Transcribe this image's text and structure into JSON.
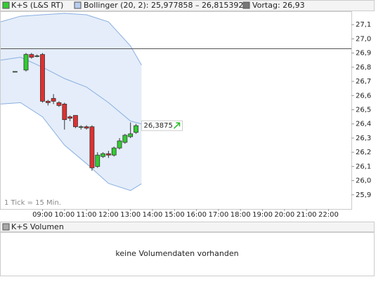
{
  "chart_data": {
    "type": "candlestick",
    "title": "K+S (L&S RT)",
    "annotation": "1 Tick = 15 Min.",
    "x": [
      7.75,
      8.25,
      8.5,
      8.75,
      9.0,
      9.25,
      9.5,
      9.75,
      10.0,
      10.25,
      10.5,
      10.75,
      11.0,
      11.25,
      11.5,
      11.75,
      12.0,
      12.25,
      12.5,
      12.75,
      13.0,
      13.25
    ],
    "open": [
      26.77,
      26.78,
      26.89,
      26.88,
      26.89,
      26.56,
      26.58,
      26.55,
      26.54,
      26.45,
      26.46,
      26.38,
      26.38,
      26.38,
      26.1,
      26.17,
      26.19,
      26.18,
      26.23,
      26.27,
      26.31,
      26.34
    ],
    "high": [
      26.77,
      26.9,
      26.9,
      26.89,
      26.9,
      26.57,
      26.61,
      26.56,
      26.55,
      26.46,
      26.46,
      26.39,
      26.39,
      26.39,
      26.2,
      26.2,
      26.21,
      26.24,
      26.3,
      26.33,
      26.41,
      26.4
    ],
    "low": [
      26.77,
      26.77,
      26.86,
      26.87,
      26.55,
      26.53,
      26.54,
      26.52,
      26.36,
      26.42,
      26.37,
      26.36,
      26.36,
      26.07,
      26.09,
      26.16,
      26.16,
      26.17,
      26.22,
      26.26,
      26.3,
      26.33
    ],
    "close": [
      26.77,
      26.89,
      26.87,
      26.88,
      26.56,
      26.55,
      26.56,
      26.53,
      26.43,
      26.44,
      26.38,
      26.38,
      26.37,
      26.09,
      26.18,
      26.19,
      26.18,
      26.23,
      26.28,
      26.32,
      26.33,
      26.3875
    ],
    "up_color": "#33cc33",
    "down_color": "#e03030",
    "last_label": "26,3875",
    "bollinger": {
      "name": "Bollinger (20, 2): 25,977858 – 26,815392",
      "color": "#8aaee0",
      "fill": "#dde8f7",
      "x": [
        7.1,
        8,
        9,
        10,
        11,
        12,
        13,
        13.5
      ],
      "upper": [
        27.12,
        27.16,
        27.17,
        27.18,
        27.17,
        27.12,
        26.95,
        26.815392
      ],
      "middle": [
        26.85,
        26.87,
        26.8,
        26.72,
        26.66,
        26.55,
        26.42,
        26.4
      ],
      "lower": [
        26.54,
        26.55,
        26.45,
        26.25,
        26.12,
        25.98,
        25.93,
        25.977858
      ]
    },
    "previous_close": {
      "name": "Vortag: 26,93",
      "value": 26.93,
      "color": "#555555"
    },
    "xlim": [
      7.1,
      23.04
    ],
    "ylim": [
      25.8,
      27.19
    ],
    "xticks": [
      {
        "value": 9,
        "label": "09:00"
      },
      {
        "value": 10,
        "label": "10:00"
      },
      {
        "value": 11,
        "label": "11:00"
      },
      {
        "value": 12,
        "label": "12:00"
      },
      {
        "value": 13,
        "label": "13:00"
      },
      {
        "value": 14,
        "label": "14:00"
      },
      {
        "value": 15,
        "label": "15:00"
      },
      {
        "value": 16,
        "label": "16:00"
      },
      {
        "value": 17,
        "label": "17:00"
      },
      {
        "value": 18,
        "label": "18:00"
      },
      {
        "value": 19,
        "label": "19:00"
      },
      {
        "value": 20,
        "label": "20:00"
      },
      {
        "value": 21,
        "label": "21:00"
      },
      {
        "value": 22,
        "label": "22:00"
      }
    ],
    "yticks": [
      {
        "value": 25.9,
        "label": "25,9"
      },
      {
        "value": 26.0,
        "label": "26,0"
      },
      {
        "value": 26.1,
        "label": "26,1"
      },
      {
        "value": 26.2,
        "label": "26,2"
      },
      {
        "value": 26.3,
        "label": "26,3"
      },
      {
        "value": 26.4,
        "label": "26,4"
      },
      {
        "value": 26.5,
        "label": "26,5"
      },
      {
        "value": 26.6,
        "label": "26,6"
      },
      {
        "value": 26.7,
        "label": "26,7"
      },
      {
        "value": 26.8,
        "label": "26,8"
      },
      {
        "value": 26.9,
        "label": "26,9"
      },
      {
        "value": 27.0,
        "label": "27,0"
      },
      {
        "value": 27.1,
        "label": "27,1"
      }
    ],
    "volume": {
      "title": "K+S Volumen",
      "message": "keine Volumendaten vorhanden"
    }
  }
}
